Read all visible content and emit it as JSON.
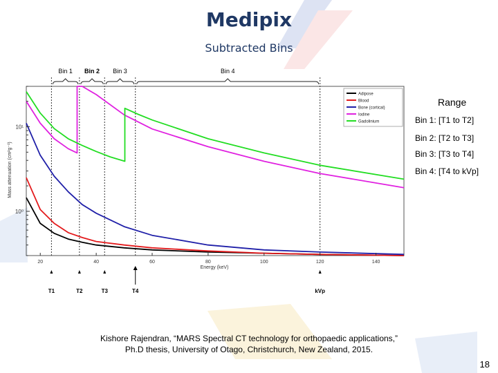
{
  "slide": {
    "title": "Medipix",
    "subtitle": "Subtracted Bins",
    "range": {
      "heading": "Range",
      "items": [
        "Bin 1: [T1 to T2]",
        "Bin 2: [T2 to T3]",
        "Bin 3: [T3 to T4]",
        "Bin 4: [T4 to kVp]"
      ]
    },
    "citation_line1": "Kishore Rajendran, “MARS Spectral CT technology for orthopaedic applications,”",
    "citation_line2": "Ph.D thesis, University of Otago, Christchurch, New Zealand, 2015.",
    "page_number": "18"
  },
  "chart_data": {
    "type": "line",
    "xlabel": "Energy (keV)",
    "ylabel": "Mass attenuation (cm²g⁻¹)",
    "xlim": [
      15,
      150
    ],
    "ylim": [
      0.3,
      30
    ],
    "yscale": "log",
    "x_ticks": [
      20,
      40,
      60,
      80,
      100,
      120,
      140
    ],
    "y_ticks": [
      {
        "value": 1,
        "label": "10⁰"
      },
      {
        "value": 10,
        "label": "10¹"
      }
    ],
    "legend_position": "top-right",
    "series": [
      {
        "name": "Adipose",
        "color": "#000000",
        "points": [
          [
            15,
            1.45
          ],
          [
            20,
            0.72
          ],
          [
            25,
            0.55
          ],
          [
            30,
            0.47
          ],
          [
            35,
            0.43
          ],
          [
            40,
            0.4
          ],
          [
            50,
            0.37
          ],
          [
            60,
            0.35
          ],
          [
            80,
            0.33
          ],
          [
            100,
            0.32
          ],
          [
            120,
            0.31
          ],
          [
            150,
            0.3
          ]
        ]
      },
      {
        "name": "Blood",
        "color": "#e31a1c",
        "points": [
          [
            15,
            2.5
          ],
          [
            20,
            1.05
          ],
          [
            25,
            0.72
          ],
          [
            30,
            0.56
          ],
          [
            35,
            0.49
          ],
          [
            40,
            0.44
          ],
          [
            50,
            0.4
          ],
          [
            60,
            0.37
          ],
          [
            80,
            0.34
          ],
          [
            100,
            0.32
          ],
          [
            120,
            0.31
          ],
          [
            150,
            0.3
          ]
        ]
      },
      {
        "name": "Bone (cortical)",
        "color": "#1f1fa8",
        "points": [
          [
            15,
            11
          ],
          [
            20,
            4.6
          ],
          [
            25,
            2.6
          ],
          [
            30,
            1.7
          ],
          [
            35,
            1.2
          ],
          [
            40,
            0.95
          ],
          [
            50,
            0.66
          ],
          [
            60,
            0.52
          ],
          [
            80,
            0.4
          ],
          [
            100,
            0.35
          ],
          [
            120,
            0.33
          ],
          [
            150,
            0.31
          ]
        ]
      },
      {
        "name": "Iodine",
        "color": "#e020e0",
        "points": [
          [
            15,
            20
          ],
          [
            20,
            11
          ],
          [
            25,
            7.2
          ],
          [
            30,
            5.5
          ],
          [
            33.17,
            4.9
          ],
          [
            33.17,
            35
          ],
          [
            35,
            31
          ],
          [
            40,
            24
          ],
          [
            50,
            13.8
          ],
          [
            60,
            9.4
          ],
          [
            80,
            5.8
          ],
          [
            100,
            3.9
          ],
          [
            120,
            2.8
          ],
          [
            150,
            1.9
          ]
        ]
      },
      {
        "name": "Gadolinium",
        "color": "#22dd22",
        "points": [
          [
            15,
            26
          ],
          [
            20,
            14.5
          ],
          [
            25,
            9.5
          ],
          [
            30,
            7.2
          ],
          [
            35,
            6.0
          ],
          [
            40,
            5.1
          ],
          [
            45,
            4.4
          ],
          [
            50.24,
            3.9
          ],
          [
            50.24,
            16.5
          ],
          [
            55,
            14
          ],
          [
            60,
            12
          ],
          [
            80,
            7.2
          ],
          [
            100,
            4.9
          ],
          [
            120,
            3.5
          ],
          [
            150,
            2.4
          ]
        ]
      }
    ],
    "bins": [
      {
        "label": "Bin 1",
        "from": 24,
        "to": 34
      },
      {
        "label": "Bin 2",
        "from": 34,
        "to": 43
      },
      {
        "label": "Bin 3",
        "from": 43,
        "to": 54
      },
      {
        "label": "Bin 4",
        "from": 54,
        "to": 120
      }
    ],
    "thresholds": [
      {
        "label": "T1",
        "x": 24
      },
      {
        "label": "T2",
        "x": 34
      },
      {
        "label": "T3",
        "x": 43
      },
      {
        "label": "T4",
        "x": 54
      },
      {
        "label": "kVp",
        "x": 120
      }
    ]
  }
}
